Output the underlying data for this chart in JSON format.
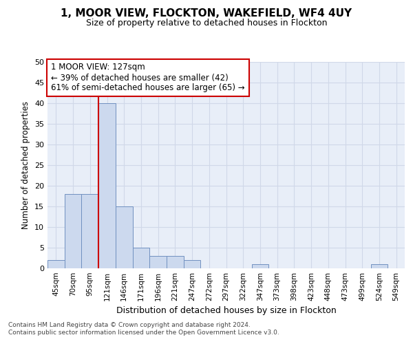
{
  "title": "1, MOOR VIEW, FLOCKTON, WAKEFIELD, WF4 4UY",
  "subtitle": "Size of property relative to detached houses in Flockton",
  "xlabel": "Distribution of detached houses by size in Flockton",
  "ylabel": "Number of detached properties",
  "categories": [
    "45sqm",
    "70sqm",
    "95sqm",
    "121sqm",
    "146sqm",
    "171sqm",
    "196sqm",
    "221sqm",
    "247sqm",
    "272sqm",
    "297sqm",
    "322sqm",
    "347sqm",
    "373sqm",
    "398sqm",
    "423sqm",
    "448sqm",
    "473sqm",
    "499sqm",
    "524sqm",
    "549sqm"
  ],
  "values": [
    2,
    18,
    18,
    40,
    15,
    5,
    3,
    3,
    2,
    0,
    0,
    0,
    1,
    0,
    0,
    0,
    0,
    0,
    0,
    1,
    0
  ],
  "bar_color": "#ccd9ee",
  "bar_edge_color": "#7090c0",
  "red_line_x": 2.5,
  "annotation_text": "1 MOOR VIEW: 127sqm\n← 39% of detached houses are smaller (42)\n61% of semi-detached houses are larger (65) →",
  "annotation_box_color": "#ffffff",
  "annotation_box_edge_color": "#cc0000",
  "grid_color": "#d0d8e8",
  "ylim": [
    0,
    50
  ],
  "yticks": [
    0,
    5,
    10,
    15,
    20,
    25,
    30,
    35,
    40,
    45,
    50
  ],
  "footer_text": "Contains HM Land Registry data © Crown copyright and database right 2024.\nContains public sector information licensed under the Open Government Licence v3.0.",
  "background_color": "#e8eef8",
  "title_fontsize": 11,
  "subtitle_fontsize": 9
}
